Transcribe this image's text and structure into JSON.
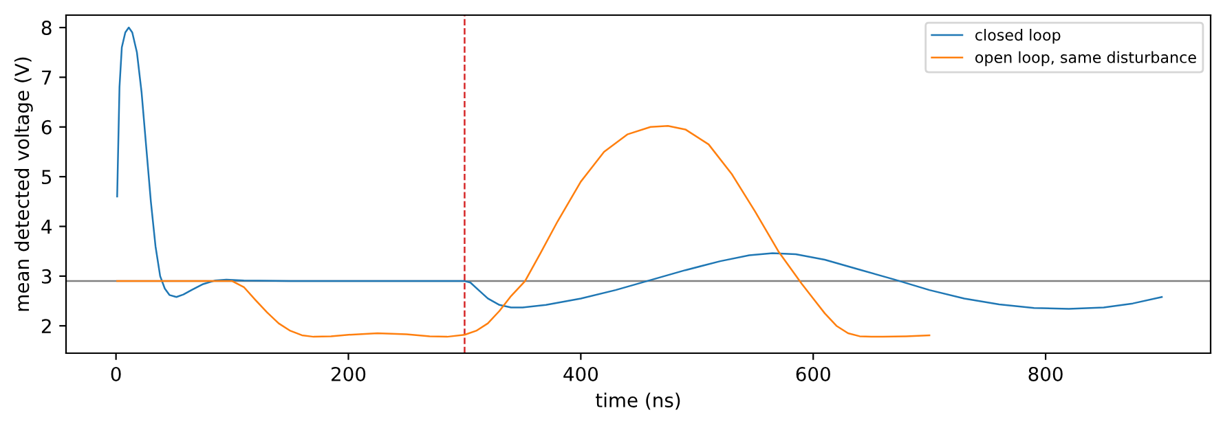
{
  "chart_data": {
    "type": "line",
    "xlabel": "time (ns)",
    "ylabel": "mean detected voltage (V)",
    "xlim": [
      -43,
      942
    ],
    "ylim": [
      1.45,
      8.25
    ],
    "xticks": [
      0,
      200,
      400,
      600,
      800
    ],
    "yticks": [
      2,
      3,
      4,
      5,
      6,
      7,
      8
    ],
    "legend": "top right",
    "grid": false,
    "series": [
      {
        "name": "closed loop",
        "color": "#1f77b4",
        "x": [
          1,
          3,
          5,
          8,
          11,
          14,
          18,
          22,
          26,
          30,
          34,
          38,
          42,
          46,
          52,
          58,
          65,
          75,
          85,
          95,
          110,
          150,
          200,
          250,
          300,
          305,
          312,
          320,
          330,
          340,
          350,
          370,
          400,
          430,
          460,
          490,
          520,
          545,
          565,
          585,
          610,
          640,
          670,
          700,
          730,
          760,
          790,
          820,
          850,
          875,
          900
        ],
        "values": [
          4.6,
          6.8,
          7.6,
          7.9,
          8.0,
          7.9,
          7.5,
          6.7,
          5.6,
          4.5,
          3.6,
          3.0,
          2.75,
          2.62,
          2.58,
          2.63,
          2.72,
          2.84,
          2.91,
          2.93,
          2.91,
          2.9,
          2.9,
          2.9,
          2.9,
          2.87,
          2.72,
          2.55,
          2.42,
          2.37,
          2.37,
          2.42,
          2.55,
          2.72,
          2.92,
          3.12,
          3.3,
          3.42,
          3.46,
          3.44,
          3.33,
          3.13,
          2.93,
          2.72,
          2.55,
          2.43,
          2.36,
          2.34,
          2.37,
          2.45,
          2.58
        ]
      },
      {
        "name": "open loop, same disturbance",
        "color": "#ff7f0e",
        "x": [
          1,
          50,
          100,
          110,
          120,
          130,
          140,
          150,
          160,
          170,
          185,
          200,
          225,
          250,
          270,
          285,
          300,
          310,
          320,
          330,
          340,
          352,
          365,
          380,
          400,
          420,
          440,
          460,
          475,
          490,
          510,
          530,
          550,
          570,
          590,
          600,
          610,
          620,
          630,
          640,
          650,
          660,
          680,
          700
        ],
        "values": [
          2.9,
          2.9,
          2.9,
          2.78,
          2.52,
          2.27,
          2.05,
          1.9,
          1.81,
          1.78,
          1.79,
          1.82,
          1.85,
          1.83,
          1.79,
          1.78,
          1.82,
          1.9,
          2.05,
          2.3,
          2.6,
          2.9,
          3.45,
          4.1,
          4.9,
          5.5,
          5.85,
          6.0,
          6.02,
          5.95,
          5.65,
          5.05,
          4.3,
          3.5,
          2.85,
          2.55,
          2.25,
          2.0,
          1.85,
          1.79,
          1.78,
          1.78,
          1.79,
          1.81
        ]
      }
    ],
    "ref_lines": [
      {
        "axis": "y",
        "value": 2.9,
        "color": "#808080",
        "line_style": "solid",
        "label": null
      },
      {
        "axis": "x",
        "value": 300,
        "color": "#d62728",
        "line_style": "dashed",
        "label": null
      }
    ]
  }
}
